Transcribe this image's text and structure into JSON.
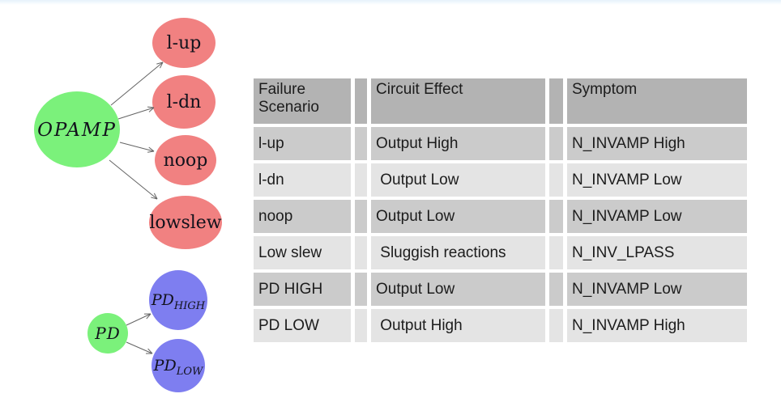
{
  "page": {
    "top_strip_color": "#e6f2fb",
    "background": "#ffffff"
  },
  "diagram": {
    "edge_color": "#646464",
    "node_colors": {
      "root_green": "#7bf17b",
      "failure_red": "#f18181",
      "pd_blue": "#7e7ef0"
    },
    "opamp_tree": {
      "root": {
        "label": "OPAMP"
      },
      "children": [
        {
          "label": "l-up"
        },
        {
          "label": "l-dn"
        },
        {
          "label": "noop"
        },
        {
          "label": "lowslew"
        }
      ]
    },
    "pd_tree": {
      "root": {
        "label": "PD"
      },
      "children": [
        {
          "label_base": "PD",
          "label_sub": "HIGH"
        },
        {
          "label_base": "PD",
          "label_sub": "LOW"
        }
      ]
    }
  },
  "table": {
    "colors": {
      "header_bg": "#b3b3b3",
      "row_odd_bg": "#cbcbcb",
      "row_even_bg": "#e4e4e4"
    },
    "headers": [
      "Failure Scenario",
      "Circuit Effect",
      "Symptom"
    ],
    "rows": [
      {
        "failure": "l-up",
        "effect": "Output High",
        "symptom": "N_INVAMP High"
      },
      {
        "failure": "l-dn",
        "effect": " Output Low",
        "symptom": "N_INVAMP Low"
      },
      {
        "failure": "noop",
        "effect": "Output Low",
        "symptom": "N_INVAMP Low"
      },
      {
        "failure": "Low slew",
        "effect": " Sluggish reactions",
        "symptom": "N_INV_LPASS"
      },
      {
        "failure": "PD HIGH",
        "effect": "Output Low",
        "symptom": "N_INVAMP Low"
      },
      {
        "failure": "PD LOW",
        "effect": " Output High",
        "symptom": "N_INVAMP High"
      }
    ]
  }
}
